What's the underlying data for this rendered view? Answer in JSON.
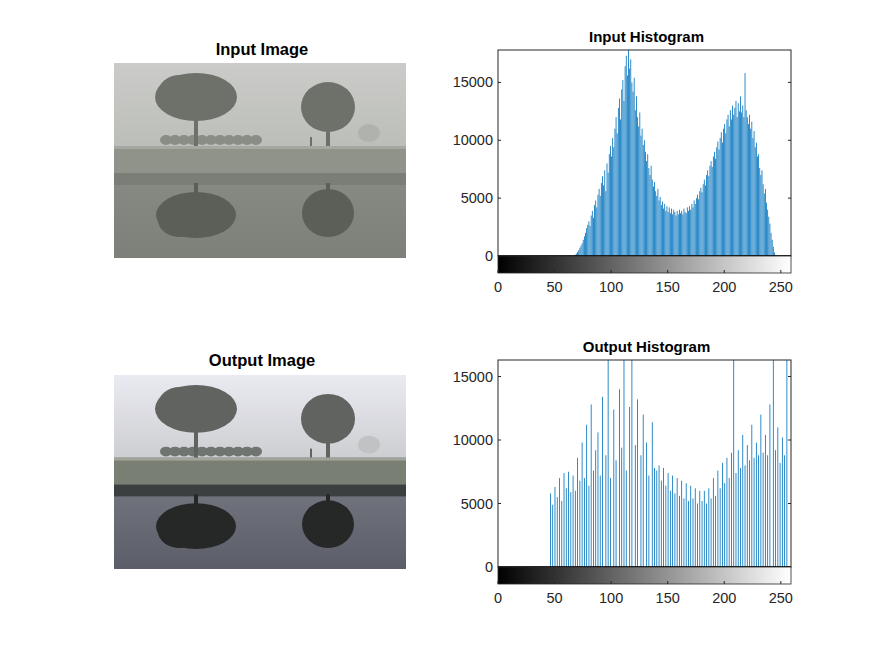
{
  "images": [
    {
      "title": "Input Image"
    },
    {
      "title": "Output Image"
    }
  ],
  "chart_data": [
    {
      "type": "histogram",
      "title": "Input Histogram",
      "color": "#0072bd",
      "xlim": [
        0,
        259
      ],
      "xticks": [
        0,
        50,
        100,
        150,
        200,
        250
      ],
      "ylim": [
        0,
        17800
      ],
      "yticks": [
        0,
        5000,
        10000,
        15000
      ],
      "grid": false,
      "bins": [
        66,
        67,
        68,
        69,
        70,
        71,
        72,
        73,
        74,
        75,
        76,
        77,
        78,
        79,
        80,
        81,
        82,
        83,
        84,
        85,
        86,
        87,
        88,
        89,
        90,
        91,
        92,
        93,
        94,
        95,
        96,
        97,
        98,
        99,
        100,
        101,
        102,
        103,
        104,
        105,
        106,
        107,
        108,
        109,
        110,
        111,
        112,
        113,
        114,
        115,
        116,
        117,
        118,
        119,
        120,
        121,
        122,
        123,
        124,
        125,
        126,
        127,
        128,
        129,
        130,
        131,
        132,
        133,
        134,
        135,
        136,
        137,
        138,
        139,
        140,
        141,
        142,
        143,
        144,
        145,
        146,
        147,
        148,
        149,
        150,
        151,
        152,
        153,
        154,
        155,
        156,
        157,
        158,
        159,
        160,
        161,
        162,
        163,
        164,
        165,
        166,
        167,
        168,
        169,
        170,
        171,
        172,
        173,
        174,
        175,
        176,
        177,
        178,
        179,
        180,
        181,
        182,
        183,
        184,
        185,
        186,
        187,
        188,
        189,
        190,
        191,
        192,
        193,
        194,
        195,
        196,
        197,
        198,
        199,
        200,
        201,
        202,
        203,
        204,
        205,
        206,
        207,
        208,
        209,
        210,
        211,
        212,
        213,
        214,
        215,
        216,
        217,
        218,
        219,
        220,
        221,
        222,
        223,
        224,
        225,
        226,
        227,
        228,
        229,
        230,
        231,
        232,
        233,
        234,
        235,
        236,
        237,
        238,
        239,
        240,
        241,
        242,
        243,
        244,
        245,
        246
      ],
      "values": [
        0,
        50,
        120,
        200,
        350,
        500,
        700,
        900,
        1100,
        1400,
        1700,
        2000,
        2400,
        2700,
        3000,
        2600,
        3500,
        3900,
        3300,
        4400,
        4800,
        4200,
        5300,
        5800,
        5200,
        6300,
        6900,
        6100,
        7400,
        5600,
        8000,
        7200,
        8800,
        9500,
        8600,
        10200,
        9400,
        11000,
        12000,
        10600,
        12800,
        13600,
        11800,
        14400,
        15200,
        13400,
        16400,
        17300,
        15600,
        17800,
        16200,
        17000,
        15000,
        14200,
        15400,
        12600,
        13800,
        12000,
        11200,
        12400,
        10400,
        11000,
        9600,
        10000,
        9000,
        8200,
        8800,
        7600,
        7000,
        7800,
        6600,
        6000,
        6400,
        5600,
        5200,
        5800,
        4800,
        5100,
        4400,
        4700,
        4100,
        4500,
        3900,
        4300,
        3800,
        4200,
        3700,
        4100,
        3600,
        4000,
        3800,
        3500,
        3900,
        3600,
        4000,
        3700,
        3900,
        3600,
        4100,
        3800,
        3700,
        4200,
        3900,
        4300,
        4000,
        4500,
        4200,
        4800,
        4500,
        5000,
        5300,
        4900,
        5600,
        5900,
        5500,
        6200,
        6600,
        6100,
        7000,
        7400,
        6900,
        7800,
        8200,
        7700,
        8600,
        9000,
        8400,
        9400,
        9900,
        9200,
        10200,
        10700,
        9800,
        11000,
        11400,
        10600,
        11800,
        12200,
        11200,
        12600,
        11800,
        13000,
        12200,
        12800,
        13400,
        12000,
        13200,
        12500,
        13800,
        12400,
        13000,
        12000,
        15800,
        12600,
        12000,
        11400,
        12200,
        11000,
        11600,
        10200,
        10800,
        9400,
        9800,
        8600,
        8800,
        7600,
        7000,
        7400,
        6200,
        5400,
        5800,
        4600,
        4000,
        3400,
        2800,
        2000,
        1400,
        800,
        300,
        80
      ]
    },
    {
      "type": "histogram",
      "title": "Output Histogram",
      "color": "#0072bd",
      "xlim": [
        0,
        259
      ],
      "xticks": [
        0,
        50,
        100,
        150,
        200,
        250
      ],
      "ylim": [
        0,
        16300
      ],
      "yticks": [
        0,
        5000,
        10000,
        15000
      ],
      "grid": false,
      "bins": [
        44,
        45,
        46,
        47,
        48,
        49,
        50,
        51,
        52,
        53,
        54,
        55,
        56,
        57,
        58,
        59,
        60,
        61,
        62,
        63,
        64,
        65,
        66,
        67,
        68,
        69,
        70,
        71,
        72,
        73,
        74,
        75,
        76,
        77,
        78,
        79,
        80,
        81,
        82,
        83,
        84,
        85,
        86,
        87,
        88,
        89,
        90,
        91,
        92,
        93,
        94,
        95,
        96,
        97,
        98,
        99,
        100,
        101,
        102,
        103,
        104,
        105,
        106,
        107,
        108,
        109,
        110,
        111,
        112,
        113,
        114,
        115,
        116,
        117,
        118,
        119,
        120,
        121,
        122,
        123,
        124,
        125,
        126,
        127,
        128,
        129,
        130,
        131,
        132,
        133,
        134,
        135,
        136,
        137,
        138,
        139,
        140,
        141,
        142,
        143,
        144,
        145,
        146,
        147,
        148,
        149,
        150,
        151,
        152,
        153,
        154,
        155,
        156,
        157,
        158,
        159,
        160,
        161,
        162,
        163,
        164,
        165,
        166,
        167,
        168,
        169,
        170,
        171,
        172,
        173,
        174,
        175,
        176,
        177,
        178,
        179,
        180,
        181,
        182,
        183,
        184,
        185,
        186,
        187,
        188,
        189,
        190,
        191,
        192,
        193,
        194,
        195,
        196,
        197,
        198,
        199,
        200,
        201,
        202,
        203,
        204,
        205,
        206,
        207,
        208,
        209,
        210,
        211,
        212,
        213,
        214,
        215,
        216,
        217,
        218,
        219,
        220,
        221,
        222,
        223,
        224,
        225,
        226,
        227,
        228,
        229,
        230,
        231,
        232,
        233,
        234,
        235,
        236,
        237,
        238,
        239,
        240,
        241,
        242,
        243,
        244,
        245,
        246,
        247,
        248,
        249,
        250,
        251,
        252,
        253,
        254,
        255,
        256
      ],
      "values": [
        0,
        0,
        5800,
        0,
        4900,
        0,
        6300,
        0,
        5500,
        0,
        7000,
        0,
        5200,
        0,
        7400,
        0,
        6200,
        0,
        7500,
        0,
        5900,
        0,
        7200,
        0,
        6000,
        0,
        8600,
        0,
        6800,
        0,
        9800,
        0,
        7000,
        0,
        11200,
        0,
        6400,
        0,
        12800,
        0,
        7600,
        0,
        9200,
        0,
        10600,
        0,
        7200,
        0,
        13400,
        0,
        0,
        8800,
        0,
        16300,
        0,
        7000,
        0,
        0,
        12400,
        0,
        8400,
        0,
        0,
        14000,
        0,
        9400,
        0,
        16300,
        0,
        7600,
        0,
        0,
        12600,
        0,
        16300,
        0,
        0,
        9600,
        0,
        13200,
        0,
        0,
        8800,
        0,
        12000,
        0,
        0,
        9800,
        0,
        7200,
        0,
        0,
        11400,
        0,
        7800,
        0,
        7600,
        0,
        8000,
        0,
        6800,
        0,
        7800,
        0,
        6400,
        0,
        7400,
        0,
        6000,
        0,
        7200,
        0,
        5800,
        0,
        7000,
        0,
        5600,
        0,
        6800,
        0,
        5400,
        0,
        6600,
        0,
        5200,
        0,
        6400,
        0,
        5400,
        0,
        6200,
        0,
        5000,
        0,
        6000,
        0,
        5200,
        0,
        6000,
        0,
        5000,
        0,
        6200,
        0,
        5400,
        0,
        7000,
        0,
        5600,
        0,
        7600,
        0,
        6200,
        0,
        8200,
        0,
        6600,
        0,
        8600,
        0,
        7000,
        0,
        9000,
        0,
        16300,
        0,
        7400,
        0,
        9200,
        0,
        7800,
        0,
        10400,
        0,
        8000,
        0,
        9600,
        0,
        8400,
        0,
        11200,
        0,
        8600,
        0,
        9800,
        0,
        8800,
        0,
        12000,
        0,
        9000,
        0,
        10400,
        0,
        8800,
        0,
        12800,
        0,
        0,
        16300,
        0,
        9200,
        0,
        11000,
        0,
        8200,
        0,
        10200,
        0,
        8800,
        0,
        16300
      ]
    }
  ]
}
